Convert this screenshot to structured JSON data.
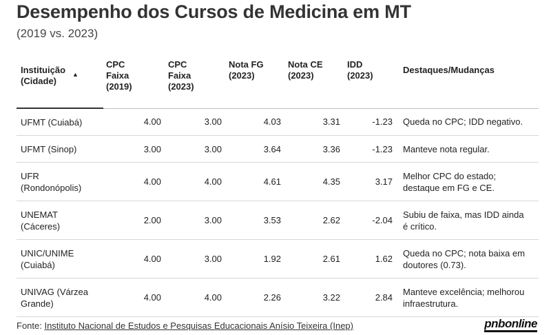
{
  "title": "Desempenho dos Cursos de Medicina em MT",
  "subtitle": "(2019 vs. 2023)",
  "table": {
    "headers": [
      {
        "line1": "Instituição",
        "line2": "(Cidade)",
        "line3": ""
      },
      {
        "line1": "CPC",
        "line2": "Faixa",
        "line3": "(2019)"
      },
      {
        "line1": "CPC",
        "line2": "Faixa",
        "line3": "(2023)"
      },
      {
        "line1": "Nota FG",
        "line2": "(2023)",
        "line3": ""
      },
      {
        "line1": "Nota CE",
        "line2": "(2023)",
        "line3": ""
      },
      {
        "line1": "IDD",
        "line2": "(2023)",
        "line3": ""
      },
      {
        "line1": "Destaques/Mudanças",
        "line2": "",
        "line3": ""
      }
    ],
    "sort_indicator": "▲",
    "rows": [
      {
        "inst1": "UFMT (Cuiabá)",
        "inst2": "",
        "cpc2019": "4.00",
        "cpc2023": "3.00",
        "fg": "4.03",
        "ce": "3.31",
        "idd": "-1.23",
        "desc1": "Queda no CPC; IDD negativo.",
        "desc2": ""
      },
      {
        "inst1": "UFMT (Sinop)",
        "inst2": "",
        "cpc2019": "3.00",
        "cpc2023": "3.00",
        "fg": "3.64",
        "ce": "3.36",
        "idd": "-1.23",
        "desc1": "Manteve nota regular.",
        "desc2": ""
      },
      {
        "inst1": "UFR",
        "inst2": "(Rondonópolis)",
        "cpc2019": "4.00",
        "cpc2023": "4.00",
        "fg": "4.61",
        "ce": "4.35",
        "idd": "3.17",
        "desc1": "Melhor CPC do estado;",
        "desc2": "destaque em FG e CE."
      },
      {
        "inst1": "UNEMAT",
        "inst2": "(Cáceres)",
        "cpc2019": "2.00",
        "cpc2023": "3.00",
        "fg": "3.53",
        "ce": "2.62",
        "idd": "-2.04",
        "desc1": "Subiu de faixa, mas IDD ainda",
        "desc2": "é crítico."
      },
      {
        "inst1": "UNIC/UNIME",
        "inst2": "(Cuiabá)",
        "cpc2019": "4.00",
        "cpc2023": "3.00",
        "fg": "1.92",
        "ce": "2.61",
        "idd": "1.62",
        "desc1": "Queda no CPC; nota baixa em",
        "desc2": "doutores (0.73)."
      },
      {
        "inst1": "UNIVAG (Várzea",
        "inst2": "Grande)",
        "cpc2019": "4.00",
        "cpc2023": "4.00",
        "fg": "2.26",
        "ce": "3.22",
        "idd": "2.84",
        "desc1": "Manteve excelência; melhorou",
        "desc2": "infraestrutura."
      }
    ]
  },
  "footer": {
    "label": "Fonte: ",
    "link_text": "Instituto Nacional de Estudos e Pesquisas Educacionais Anísio Teixeira (Inep)"
  },
  "logo": {
    "part1": "pnb",
    "part2": "online"
  }
}
